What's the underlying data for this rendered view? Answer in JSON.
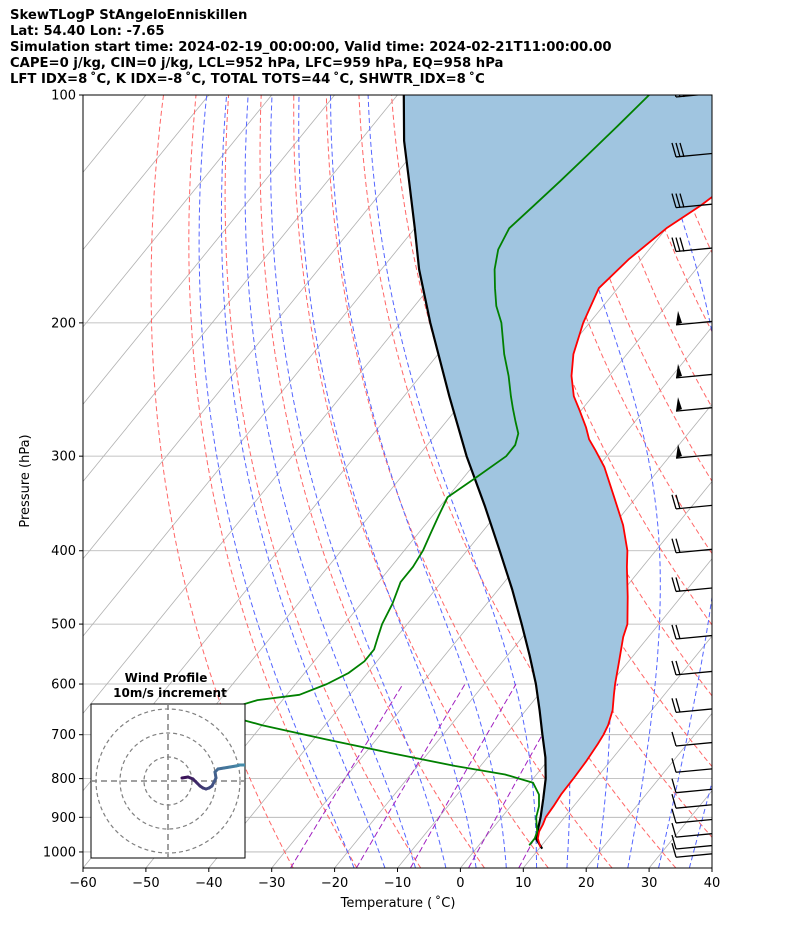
{
  "header": {
    "line1": "SkewTLogP StAngeloEnniskillen",
    "line2": "Lat: 54.40   Lon: -7.65",
    "line3": "Simulation start time: 2024-02-19_00:00:00, Valid time: 2024-02-21T11:00:00.00",
    "line4": "CAPE=0 j/kg, CIN=0 j/kg, LCL=952 hPa, LFC=959 hPa, EQ=958 hPa",
    "line5": "LFT IDX=8 ˚C, K IDX=-8 ˚C, TOTAL TOTS=44 ˚C, SHWTR_IDX=8 ˚C"
  },
  "chart_data": {
    "type": "line",
    "title": "SkewTLogP StAngeloEnniskillen",
    "xlabel": "Temperature ( ˚C)",
    "ylabel": "Pressure (hPa)",
    "xlim": [
      -60,
      40
    ],
    "ylim": [
      1050,
      100
    ],
    "y_scale": "log",
    "x_ticks": [
      "−60",
      "−50",
      "−40",
      "−30",
      "−20",
      "−10",
      "0",
      "10",
      "20",
      "30",
      "40"
    ],
    "y_ticks": [
      "100",
      "200",
      "300",
      "400",
      "500",
      "600",
      "700",
      "800",
      "900",
      "1000"
    ],
    "grid": true,
    "colors": {
      "temperature": "#ff0000",
      "dewpoint": "#008000",
      "parcel": "#000000",
      "cape_fill": "#a0c5e0",
      "dry_adiabat": "#ff6666",
      "moist_adiabat": "#5566ff",
      "mixing_ratio": "#a020c0",
      "isotherm": "#b0b0b0"
    },
    "series": [
      {
        "name": "Temperature",
        "pressure": [
          985,
          960,
          940,
          920,
          900,
          870,
          840,
          800,
          760,
          720,
          700,
          680,
          650,
          620,
          600,
          560,
          520,
          500,
          460,
          420,
          400,
          370,
          340,
          310,
          295,
          285,
          275,
          260,
          250,
          235,
          220,
          200,
          180,
          165,
          150,
          140,
          130,
          120,
          110,
          100
        ],
        "values": [
          10,
          8.5,
          7.8,
          7.5,
          7.0,
          6.8,
          6.5,
          6.4,
          6.2,
          5.8,
          5.5,
          5.0,
          3.8,
          2.0,
          0.8,
          -1.5,
          -4.0,
          -5.0,
          -8.5,
          -12.5,
          -14.5,
          -18.5,
          -23.5,
          -29.0,
          -32.5,
          -35.0,
          -37.0,
          -40.5,
          -43.0,
          -46.0,
          -48.5,
          -51.0,
          -53.0,
          -52.0,
          -50.0,
          -47.5,
          -45.5,
          -44.5,
          -44.0,
          -44.0
        ]
      },
      {
        "name": "Dewpoint",
        "pressure": [
          980,
          960,
          940,
          920,
          900,
          870,
          840,
          810,
          790,
          770,
          740,
          710,
          680,
          660,
          650,
          630,
          620,
          600,
          580,
          560,
          540,
          520,
          500,
          470,
          440,
          420,
          400,
          380,
          360,
          340,
          320,
          300,
          290,
          280,
          270,
          260,
          250,
          235,
          220,
          200,
          190,
          180,
          170,
          160,
          150,
          140,
          130,
          120,
          110,
          100
        ],
        "values": [
          8.0,
          8.0,
          7.5,
          6.5,
          5.5,
          4.5,
          3.0,
          0.5,
          -5.0,
          -14.0,
          -26.0,
          -38.0,
          -50.0,
          -57.0,
          -58.0,
          -54.0,
          -48.0,
          -45.0,
          -43.0,
          -42.0,
          -42.0,
          -43.0,
          -44.0,
          -45.0,
          -46.5,
          -46.5,
          -47.0,
          -48.0,
          -49.0,
          -50.0,
          -48.0,
          -46.0,
          -46.0,
          -47.0,
          -49.0,
          -51.0,
          -53.0,
          -56.0,
          -59.5,
          -64.0,
          -67.0,
          -69.5,
          -72.0,
          -74.0,
          -75.0,
          -74.0,
          -73.0,
          -72.0,
          -71.0,
          -70.0
        ]
      },
      {
        "name": "Parcel",
        "pressure": [
          990,
          960,
          930,
          900,
          850,
          800,
          750,
          700,
          650,
          600,
          550,
          500,
          450,
          400,
          350,
          300,
          250,
          200,
          170,
          150,
          130,
          115,
          100
        ],
        "values": [
          10.5,
          8.2,
          7.2,
          6.2,
          4.2,
          2.0,
          -0.8,
          -4.2,
          -7.8,
          -11.8,
          -16.5,
          -21.8,
          -27.8,
          -34.8,
          -42.8,
          -52.3,
          -62.8,
          -75.3,
          -84.0,
          -90.0,
          -97.0,
          -103.0,
          -109.0
        ]
      }
    ],
    "wind_barbs": {
      "pressure": [
        100,
        120,
        140,
        160,
        200,
        235,
        260,
        300,
        350,
        400,
        450,
        520,
        580,
        650,
        720,
        780,
        830,
        870,
        910,
        950,
        985,
        1010
      ]
    },
    "inset": {
      "title": "Wind Profile",
      "subtitle": "10m/s increment",
      "rings_ms": [
        10,
        20,
        30
      ]
    }
  }
}
